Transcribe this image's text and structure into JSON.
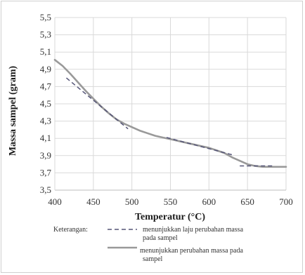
{
  "chart_data": {
    "type": "line",
    "xlabel": "Temperatur (°C)",
    "ylabel": "Massa sampel (gram)",
    "xlim": [
      400,
      700
    ],
    "ylim": [
      3.5,
      5.5
    ],
    "x_ticks": [
      "400",
      "450",
      "500",
      "550",
      "600",
      "650",
      "700"
    ],
    "y_ticks": [
      "3,5",
      "3,7",
      "3,9",
      "4,1",
      "4,3",
      "4,5",
      "4,7",
      "4,9",
      "5,1",
      "5,3",
      "5,5"
    ],
    "grid": true,
    "series": [
      {
        "style": "solid",
        "color": "#999999",
        "x": [
          400,
          410,
          420,
          430,
          440,
          450,
          460,
          470,
          480,
          490,
          500,
          510,
          520,
          530,
          540,
          550,
          560,
          570,
          580,
          590,
          600,
          610,
          620,
          630,
          640,
          650,
          660,
          670,
          680,
          690,
          700
        ],
        "y": [
          5.01,
          4.94,
          4.85,
          4.75,
          4.65,
          4.56,
          4.47,
          4.39,
          4.32,
          4.27,
          4.23,
          4.19,
          4.16,
          4.13,
          4.11,
          4.09,
          4.07,
          4.05,
          4.03,
          4.01,
          3.99,
          3.96,
          3.93,
          3.88,
          3.84,
          3.8,
          3.78,
          3.77,
          3.77,
          3.77,
          3.77
        ]
      },
      {
        "style": "dashed",
        "color": "#555577",
        "segments": [
          {
            "x": [
              415,
              495
            ],
            "y": [
              4.8,
              4.21
            ]
          },
          {
            "x": [
              545,
              630
            ],
            "y": [
              4.11,
              3.91
            ]
          },
          {
            "x": [
              640,
              685
            ],
            "y": [
              3.78,
              3.78
            ]
          }
        ]
      }
    ],
    "legend": {
      "heading": "Keterangan:",
      "entries": [
        {
          "style": "dashed",
          "text_lines": [
            "menunjukkan laju perubahan massa",
            "pada sampel"
          ]
        },
        {
          "style": "solid",
          "text_lines": [
            "menunjukkan perubahan massa pada",
            "sampel"
          ]
        }
      ]
    }
  }
}
